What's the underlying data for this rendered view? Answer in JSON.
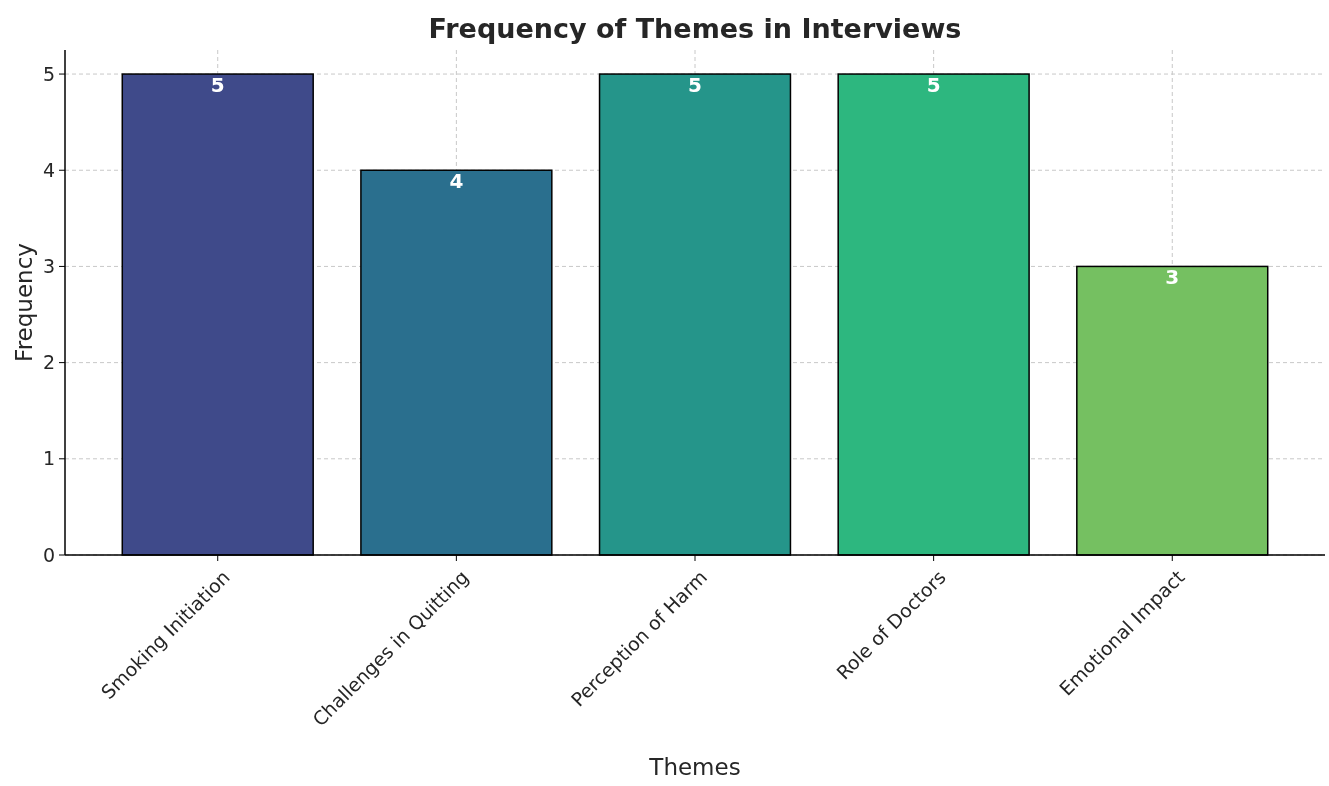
{
  "chart_data": {
    "type": "bar",
    "title": "Frequency of Themes in Interviews",
    "xlabel": "Themes",
    "ylabel": "Frequency",
    "categories": [
      "Smoking Initiation",
      "Challenges in Quitting",
      "Perception of Harm",
      "Role of Doctors",
      "Emotional Impact"
    ],
    "values": [
      5,
      4,
      5,
      5,
      3
    ],
    "colors": [
      "#3f4a8a",
      "#2a6f8e",
      "#25958a",
      "#2db77f",
      "#75c061"
    ],
    "ylim": [
      0,
      5.25
    ],
    "yticks": [
      0,
      1,
      2,
      3,
      4,
      5
    ],
    "grid": true,
    "data_labels": true
  }
}
